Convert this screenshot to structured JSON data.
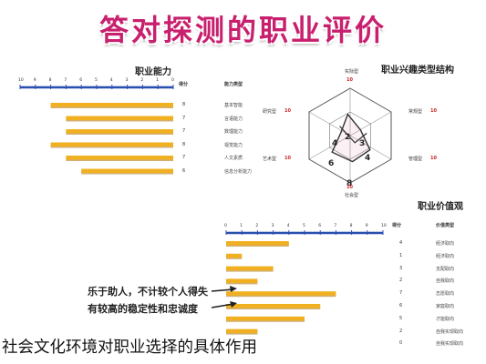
{
  "banner": {
    "title": "答对探测的职业评价"
  },
  "caption": "社会文化环境对职业选择的具体作用",
  "colors": {
    "bar": "#f0b020",
    "bar_shadow": "#b07000",
    "axis": "#2a4fb0",
    "banner": "#c8206e",
    "radar_shape": "#333333"
  },
  "chart_data": [
    {
      "type": "bar",
      "orientation": "horizontal",
      "title": "职业能力",
      "header_score": "得分",
      "header_type": "能力类型",
      "ticks": [
        "10",
        "9",
        "8",
        "7",
        "6",
        "5",
        "4",
        "3",
        "2",
        "1",
        "0"
      ],
      "categories": [
        "基本智能",
        "言语能力",
        "数理能力",
        "视觉能力",
        "人文素质",
        "信息分析能力"
      ],
      "values": [
        8,
        7,
        7,
        8,
        7,
        6
      ],
      "xlim": [
        0,
        10
      ]
    },
    {
      "type": "radar",
      "title": "职业兴趣类型结构",
      "axes": [
        {
          "label": "实际型",
          "value": 10
        },
        {
          "label": "常规型",
          "value": 10
        },
        {
          "label": "管理型",
          "value": 10
        },
        {
          "label": "社会型",
          "value": 10
        },
        {
          "label": "艺术型",
          "value": 10
        },
        {
          "label": "研究型",
          "value": 10
        }
      ],
      "inner_values": [
        "2",
        "3",
        "4",
        "4",
        "6",
        "8"
      ],
      "rlim": [
        0,
        10
      ]
    },
    {
      "type": "bar",
      "orientation": "horizontal",
      "title": "职业价值观",
      "header_score": "得分",
      "header_type": "价值类型",
      "ticks": [
        "0",
        "1",
        "2",
        "3",
        "4",
        "5",
        "6",
        "7",
        "8",
        "9",
        "10"
      ],
      "categories": [
        "经济取向",
        "经济取向",
        "支配取向",
        "自我取向",
        "志愿取向",
        "家庭取向",
        "才能取向",
        "自我实现取向",
        "自我实现取向"
      ],
      "values": [
        4,
        1,
        3,
        2,
        7,
        6,
        5,
        2,
        0
      ],
      "xlim": [
        0,
        10
      ],
      "annotations": [
        "乐于助人，不计较个人得失",
        "有较高的稳定性和忠诚度"
      ]
    }
  ]
}
